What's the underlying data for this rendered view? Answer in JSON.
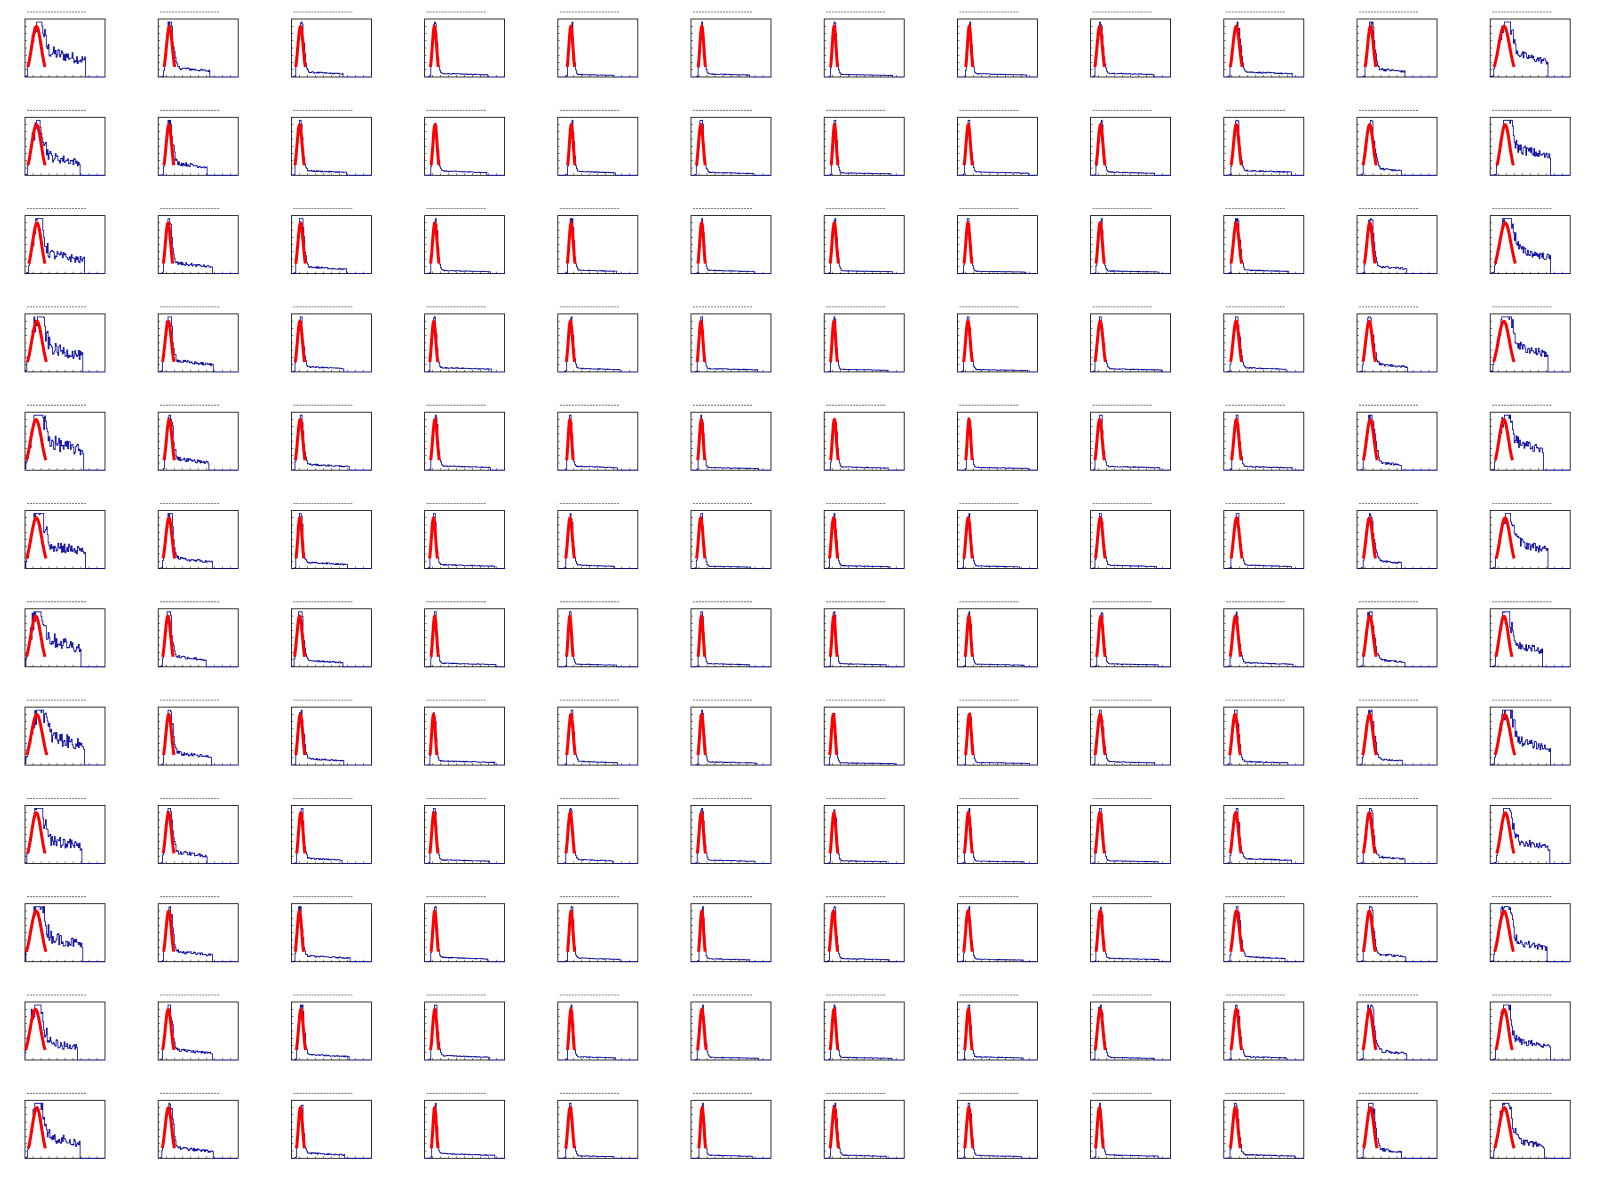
{
  "grid": {
    "rows": 12,
    "cols": 12
  },
  "colors": {
    "histogram": "#000099",
    "fit": "#ff0000",
    "frame": "#000000",
    "background": "#ffffff"
  },
  "chart_data": {
    "type": "histogram-grid",
    "x_range": [
      0,
      1
    ],
    "y_range": [
      0,
      1
    ],
    "column_profiles": [
      {
        "peak": 0.14,
        "width": 0.06,
        "tail": 0.45,
        "tail_end": 0.72,
        "noise": 0.55
      },
      {
        "peak": 0.13,
        "width": 0.035,
        "tail": 0.2,
        "tail_end": 0.65,
        "noise": 0.35
      },
      {
        "peak": 0.11,
        "width": 0.03,
        "tail": 0.1,
        "tail_end": 0.7,
        "noise": 0.3
      },
      {
        "peak": 0.12,
        "width": 0.025,
        "tail": 0.07,
        "tail_end": 0.85,
        "noise": 0.25
      },
      {
        "peak": 0.16,
        "width": 0.025,
        "tail": 0.06,
        "tail_end": 0.75,
        "noise": 0.25
      },
      {
        "peak": 0.13,
        "width": 0.025,
        "tail": 0.05,
        "tail_end": 0.8,
        "noise": 0.25
      },
      {
        "peak": 0.12,
        "width": 0.025,
        "tail": 0.05,
        "tail_end": 0.85,
        "noise": 0.25
      },
      {
        "peak": 0.14,
        "width": 0.025,
        "tail": 0.05,
        "tail_end": 0.85,
        "noise": 0.25
      },
      {
        "peak": 0.12,
        "width": 0.03,
        "tail": 0.06,
        "tail_end": 0.85,
        "noise": 0.25
      },
      {
        "peak": 0.15,
        "width": 0.035,
        "tail": 0.08,
        "tail_end": 0.85,
        "noise": 0.3
      },
      {
        "peak": 0.16,
        "width": 0.04,
        "tail": 0.15,
        "tail_end": 0.6,
        "noise": 0.35
      },
      {
        "peak": 0.18,
        "width": 0.06,
        "tail": 0.45,
        "tail_end": 0.72,
        "noise": 0.4
      }
    ]
  }
}
